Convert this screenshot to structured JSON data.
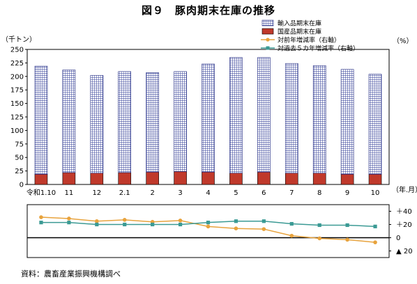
{
  "title": "図９　豚肉期末在庫の推移",
  "source": "資料：農畜産業振興機構調べ",
  "chart_data": [
    {
      "type": "bar",
      "stacked": true,
      "categories": [
        "令和1.10",
        "11",
        "12",
        "2.1",
        "2",
        "3",
        "4",
        "5",
        "6",
        "7",
        "8",
        "9",
        "10"
      ],
      "x_axis_label": "（年.月）",
      "y_axis_label": "（千トン）",
      "right_axis_label": "（%）",
      "ylim": [
        0,
        250
      ],
      "y_ticks": [
        0,
        25,
        50,
        75,
        100,
        125,
        150,
        175,
        200,
        225,
        250
      ],
      "grid": false,
      "legend_position": "top-right",
      "series": [
        {
          "name": "国産品期末在庫",
          "color": "#c0392b",
          "pattern": "solid",
          "values": [
            19,
            22,
            21,
            22,
            23,
            24,
            23,
            21,
            23,
            21,
            21,
            19,
            19
          ]
        },
        {
          "name": "輸入品期末在庫",
          "color": "#1a237e",
          "pattern": "grid",
          "values": [
            200,
            190,
            181,
            187,
            184,
            185,
            200,
            214,
            212,
            203,
            199,
            194,
            185
          ]
        }
      ],
      "legend_order": [
        "輸入品期末在庫",
        "国産品期末在庫",
        "対前年増減率（右軸）",
        "対過去５カ年増減率（右軸）"
      ]
    },
    {
      "type": "line",
      "axis": "right",
      "ylim": [
        -30,
        50
      ],
      "y_ticks": [
        40,
        20,
        0,
        -20
      ],
      "y_tick_labels": [
        "＋40",
        "＋20",
        "0",
        "▲ 20"
      ],
      "series": [
        {
          "name": "対前年増減率（右軸）",
          "color": "#e8a33d",
          "marker": "circle",
          "values": [
            31,
            29,
            25,
            27,
            24,
            26,
            17,
            14,
            13,
            3,
            -1,
            -3,
            -7
          ]
        },
        {
          "name": "対過去５カ年増減率（右軸）",
          "color": "#3b9a94",
          "marker": "square",
          "values": [
            23,
            23,
            20,
            20,
            20,
            20,
            23,
            25,
            25,
            21,
            19,
            19,
            17
          ]
        }
      ]
    }
  ]
}
